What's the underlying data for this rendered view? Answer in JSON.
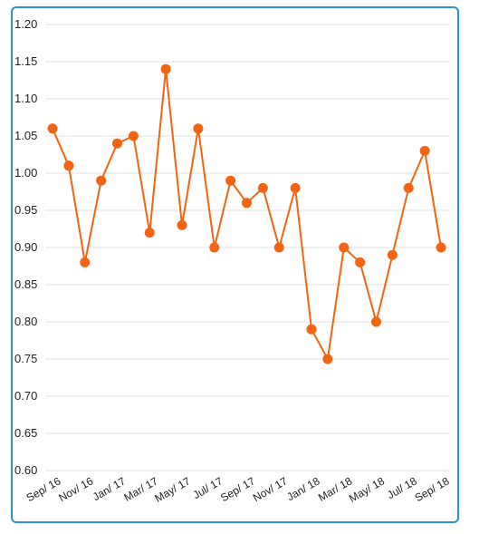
{
  "chart_data": {
    "type": "line",
    "x": [
      "Sep/ 16",
      "Oct/ 16",
      "Nov/ 16",
      "Dec/ 16",
      "Jan/ 17",
      "Feb/ 17",
      "Mar/ 17",
      "Apr/ 17",
      "May/ 17",
      "Jun/ 17",
      "Jul/ 17",
      "Aug/ 17",
      "Sep/ 17",
      "Oct/ 17",
      "Nov/ 17",
      "Dec/ 17",
      "Jan/ 18",
      "Feb/ 18",
      "Mar/ 18",
      "Apr/ 18",
      "May/ 18",
      "Jun/ 18",
      "Jul/ 18",
      "Aug/ 18",
      "Sep/ 18"
    ],
    "x_tick_labels": [
      "Sep/ 16",
      "Nov/ 16",
      "Jan/ 17",
      "Mar/ 17",
      "May/ 17",
      "Jul/ 17",
      "Sep/ 17",
      "Nov/ 17",
      "Jan/ 18",
      "Mar/ 18",
      "May/ 18",
      "Jul/ 18",
      "Sep/ 18"
    ],
    "series": [
      {
        "values": [
          1.06,
          1.01,
          0.88,
          0.99,
          1.04,
          1.05,
          0.92,
          1.14,
          0.93,
          1.06,
          0.9,
          0.99,
          0.96,
          0.98,
          0.9,
          0.98,
          0.79,
          0.75,
          0.9,
          0.88,
          0.8,
          0.89,
          0.98,
          1.03,
          0.9
        ]
      }
    ],
    "y_ticks": [
      "0.60",
      "0.65",
      "0.70",
      "0.75",
      "0.80",
      "0.85",
      "0.90",
      "0.95",
      "1.00",
      "1.05",
      "1.10",
      "1.15",
      "1.20"
    ],
    "ylim": [
      0.6,
      1.2
    ],
    "grid": "horizontal",
    "legend": "none",
    "title": "",
    "xlabel": "",
    "ylabel": "",
    "colors": {
      "series": "#f26411",
      "frame": "#2a93c9",
      "grid": "#e0e0e0"
    }
  }
}
